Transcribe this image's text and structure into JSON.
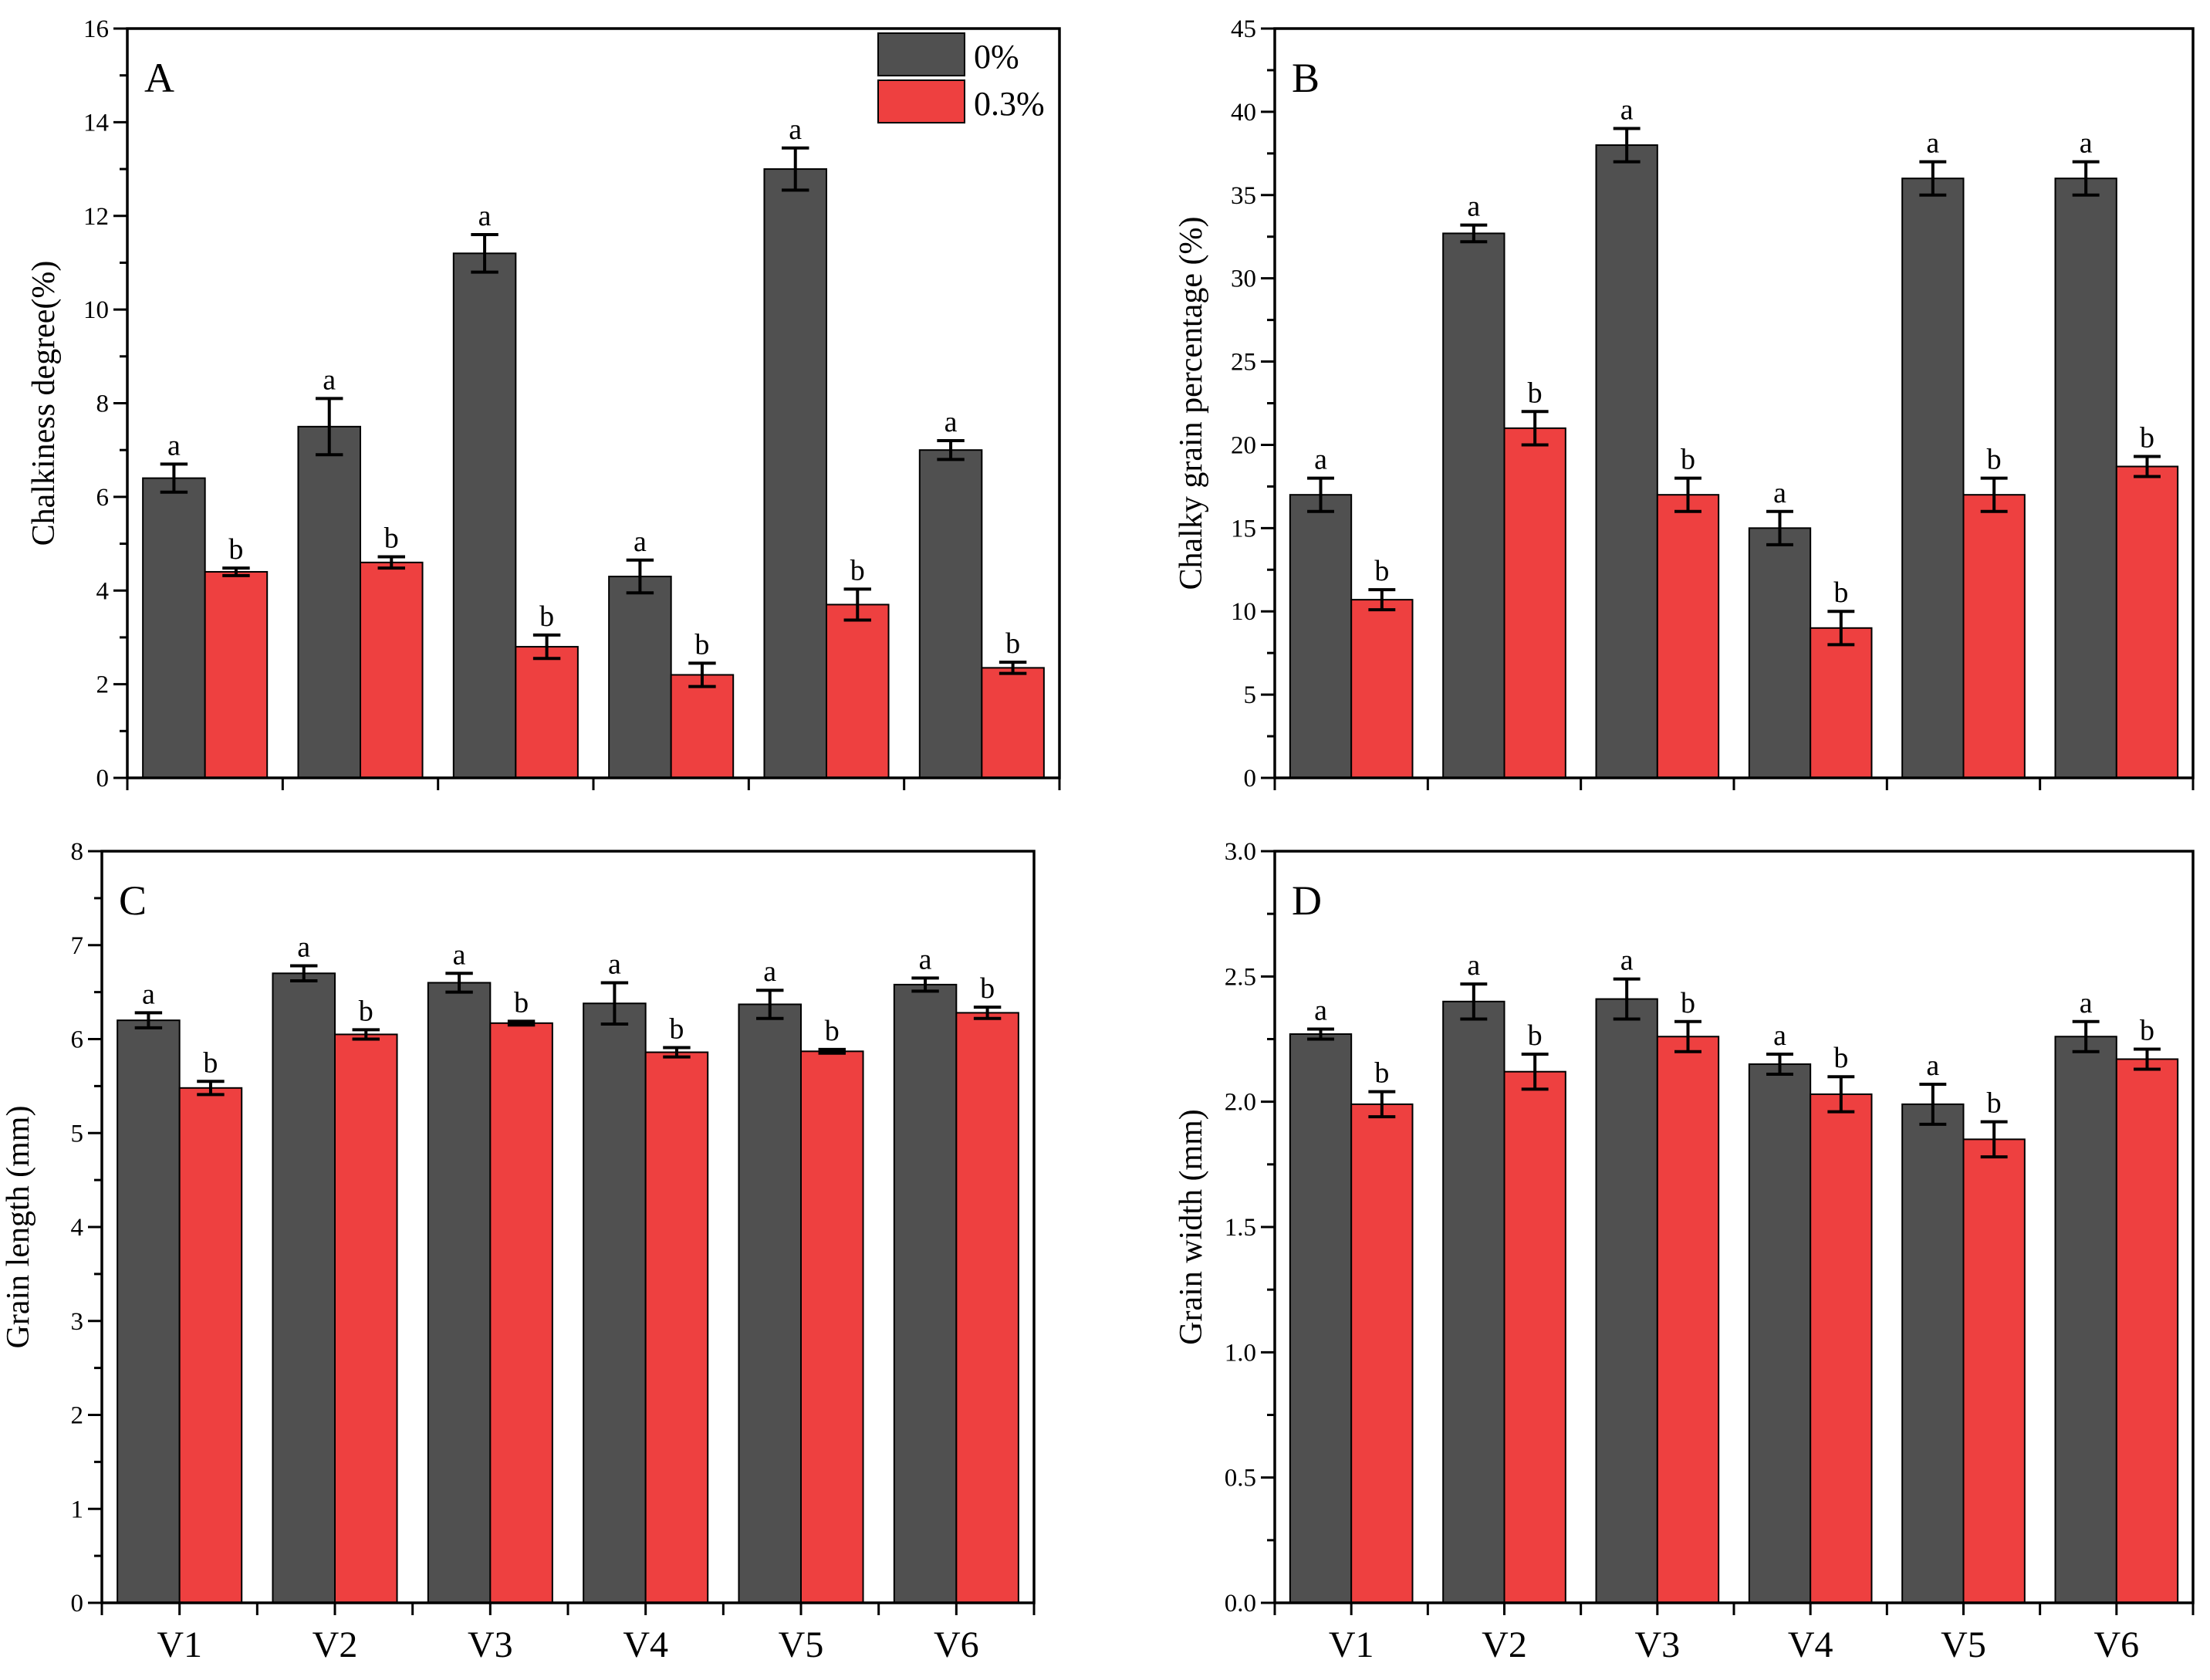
{
  "colors": {
    "control": "#505050",
    "treated": "#EE4040"
  },
  "legend": [
    "0%",
    "0.3%"
  ],
  "chart_data": [
    {
      "type": "bar",
      "panel": "A",
      "ylabel": "Chalkiness degree(%)",
      "ylim": [
        0,
        16
      ],
      "ymajor": 2,
      "yminor": 1,
      "tick_decimals": 0,
      "categories": [
        "V1",
        "V2",
        "V3",
        "V4",
        "V5",
        "V6"
      ],
      "show_category_labels": false,
      "legend": "top-right",
      "series": [
        {
          "name": "0%",
          "values": [
            6.4,
            7.5,
            11.2,
            4.3,
            13.0,
            7.0
          ],
          "errors": [
            0.3,
            0.6,
            0.4,
            0.35,
            0.45,
            0.2
          ],
          "letters": [
            "a",
            "a",
            "a",
            "a",
            "a",
            "a"
          ]
        },
        {
          "name": "0.3%",
          "values": [
            4.4,
            4.6,
            2.8,
            2.2,
            3.7,
            2.35
          ],
          "errors": [
            0.08,
            0.12,
            0.25,
            0.25,
            0.33,
            0.12
          ],
          "letters": [
            "b",
            "b",
            "b",
            "b",
            "b",
            "b"
          ]
        }
      ]
    },
    {
      "type": "bar",
      "panel": "B",
      "ylabel": "Chalky grain percentage (%)",
      "ylim": [
        0,
        45
      ],
      "ymajor": 5,
      "yminor": 2.5,
      "tick_decimals": 0,
      "categories": [
        "V1",
        "V2",
        "V3",
        "V4",
        "V5",
        "V6"
      ],
      "show_category_labels": false,
      "series": [
        {
          "name": "0%",
          "values": [
            17,
            32.7,
            38,
            15,
            36,
            36
          ],
          "errors": [
            1,
            0.5,
            1,
            1,
            1,
            1
          ],
          "letters": [
            "a",
            "a",
            "a",
            "a",
            "a",
            "a"
          ]
        },
        {
          "name": "0.3%",
          "values": [
            10.7,
            21,
            17,
            9,
            17,
            18.7
          ],
          "errors": [
            0.6,
            1,
            1,
            1,
            1,
            0.6
          ],
          "letters": [
            "b",
            "b",
            "b",
            "b",
            "b",
            "b"
          ]
        }
      ]
    },
    {
      "type": "bar",
      "panel": "C",
      "ylabel": "Grain length (mm)",
      "ylim": [
        0,
        8
      ],
      "ymajor": 1,
      "yminor": 0.5,
      "tick_decimals": 0,
      "categories": [
        "V1",
        "V2",
        "V3",
        "V4",
        "V5",
        "V6"
      ],
      "show_category_labels": true,
      "series": [
        {
          "name": "0%",
          "values": [
            6.2,
            6.7,
            6.6,
            6.38,
            6.37,
            6.58
          ],
          "errors": [
            0.08,
            0.08,
            0.1,
            0.22,
            0.15,
            0.07
          ],
          "letters": [
            "a",
            "a",
            "a",
            "a",
            "a",
            "a"
          ]
        },
        {
          "name": "0.3%",
          "values": [
            5.48,
            6.05,
            6.17,
            5.86,
            5.87,
            6.28
          ],
          "errors": [
            0.07,
            0.05,
            0.02,
            0.05,
            0.02,
            0.06
          ],
          "letters": [
            "b",
            "b",
            "b",
            "b",
            "b",
            "b"
          ]
        }
      ]
    },
    {
      "type": "bar",
      "panel": "D",
      "ylabel": "Grain width (mm)",
      "ylim": [
        0,
        3.0
      ],
      "ymajor": 0.5,
      "yminor": 0.25,
      "tick_decimals": 1,
      "categories": [
        "V1",
        "V2",
        "V3",
        "V4",
        "V5",
        "V6"
      ],
      "show_category_labels": true,
      "series": [
        {
          "name": "0%",
          "values": [
            2.27,
            2.4,
            2.41,
            2.15,
            1.99,
            2.26
          ],
          "errors": [
            0.02,
            0.07,
            0.08,
            0.04,
            0.08,
            0.06
          ],
          "letters": [
            "a",
            "a",
            "a",
            "a",
            "a",
            "a"
          ]
        },
        {
          "name": "0.3%",
          "values": [
            1.99,
            2.12,
            2.26,
            2.03,
            1.85,
            2.17
          ],
          "errors": [
            0.05,
            0.07,
            0.06,
            0.07,
            0.07,
            0.04
          ],
          "letters": [
            "b",
            "b",
            "b",
            "b",
            "b",
            "b"
          ]
        }
      ]
    }
  ]
}
